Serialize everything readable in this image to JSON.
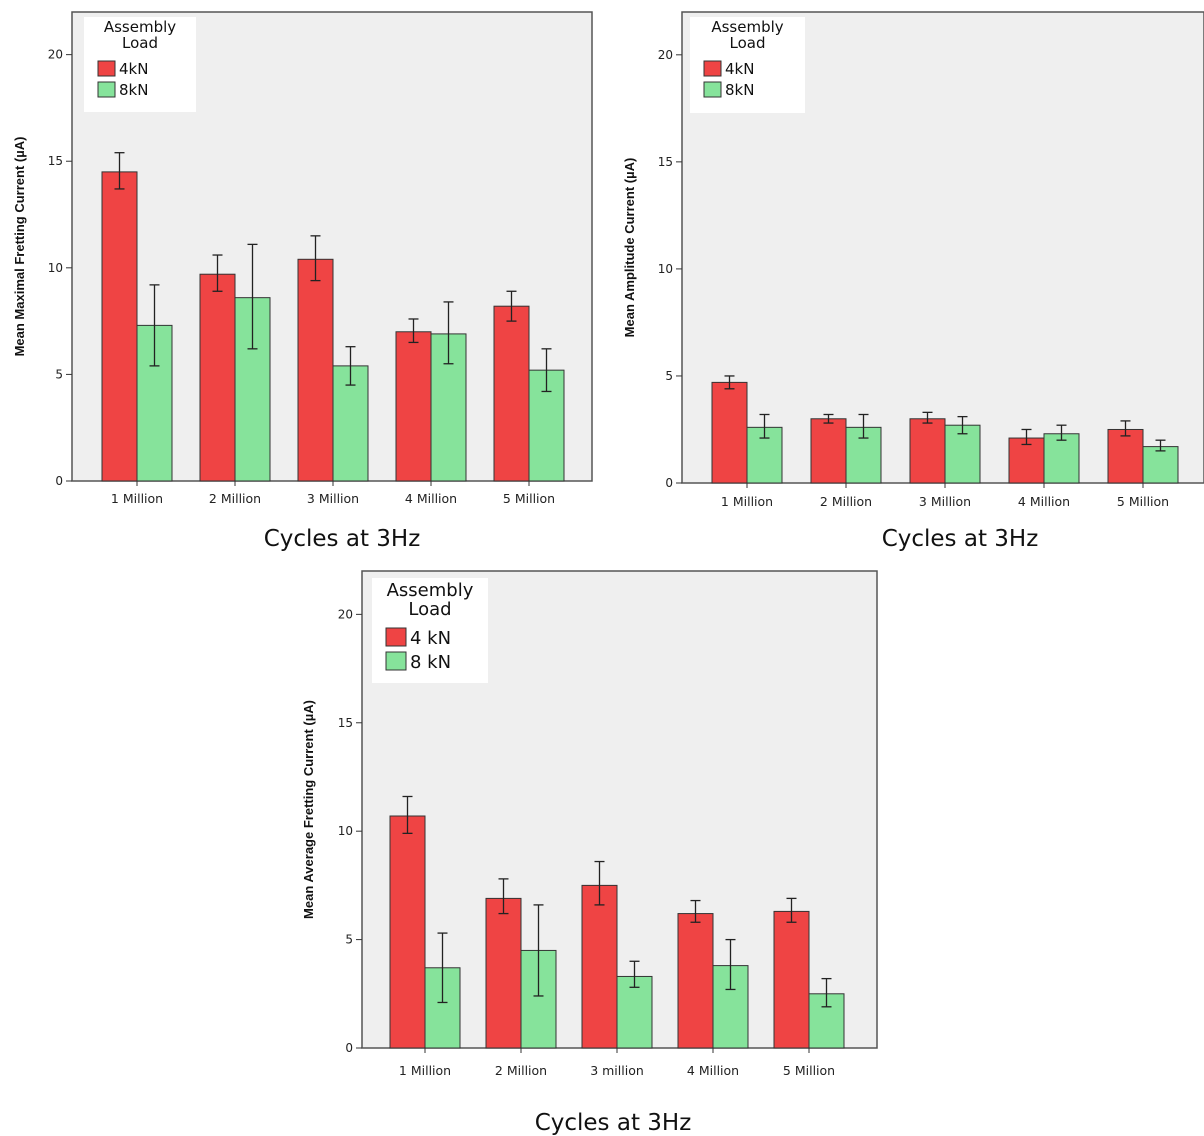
{
  "chart_data": [
    {
      "type": "bar",
      "ylabel": "Mean Maximal Fretting Current (µA)",
      "xlabel": "Cycles at 3Hz",
      "ylim": [
        0,
        22
      ],
      "yticks": [
        0,
        5,
        10,
        15,
        20
      ],
      "categories": [
        "1 Million",
        "2 Million",
        "3 Million",
        "4 Million",
        "5 Million"
      ],
      "legend_title": [
        "Assembly",
        "Load"
      ],
      "legend_position": "top-left",
      "grid": false,
      "colors": [
        "#ef4444",
        "#86e39b"
      ],
      "series": [
        {
          "name": "4kN",
          "values": [
            14.5,
            9.7,
            10.4,
            7.0,
            8.2
          ],
          "err_low": [
            13.7,
            8.9,
            9.4,
            6.5,
            7.5
          ],
          "err_high": [
            15.4,
            10.6,
            11.5,
            7.6,
            8.9
          ]
        },
        {
          "name": "8kN",
          "values": [
            7.3,
            8.6,
            5.4,
            6.9,
            5.2
          ],
          "err_low": [
            5.4,
            6.2,
            4.5,
            5.5,
            4.2
          ],
          "err_high": [
            9.2,
            11.1,
            6.3,
            8.4,
            6.2
          ]
        }
      ]
    },
    {
      "type": "bar",
      "ylabel": "Mean Amplitude Current (µA)",
      "xlabel": "Cycles at 3Hz",
      "ylim": [
        0,
        22
      ],
      "yticks": [
        0,
        5,
        10,
        15,
        20
      ],
      "categories": [
        "1 Million",
        "2 Million",
        "3 Million",
        "4 Million",
        "5 Million"
      ],
      "legend_title": [
        "Assembly",
        "Load"
      ],
      "legend_position": "top-left",
      "grid": false,
      "colors": [
        "#ef4444",
        "#86e39b"
      ],
      "series": [
        {
          "name": "4kN",
          "values": [
            4.7,
            3.0,
            3.0,
            2.1,
            2.5
          ],
          "err_low": [
            4.4,
            2.8,
            2.8,
            1.8,
            2.2
          ],
          "err_high": [
            5.0,
            3.2,
            3.3,
            2.5,
            2.9
          ]
        },
        {
          "name": "8kN",
          "values": [
            2.6,
            2.6,
            2.7,
            2.3,
            1.7
          ],
          "err_low": [
            2.1,
            2.1,
            2.3,
            2.0,
            1.5
          ],
          "err_high": [
            3.2,
            3.2,
            3.1,
            2.7,
            2.0
          ]
        }
      ]
    },
    {
      "type": "bar",
      "ylabel": "Mean Average Fretting Current (µA)",
      "xlabel": "Cycles at 3Hz",
      "ylim": [
        0,
        22
      ],
      "yticks": [
        0,
        5,
        10,
        15,
        20
      ],
      "categories": [
        "1 Million",
        "2 Million",
        "3 million",
        "4 Million",
        "5 Million"
      ],
      "legend_title": [
        "Assembly",
        "Load"
      ],
      "legend_position": "top-left",
      "grid": false,
      "colors": [
        "#ef4444",
        "#86e39b"
      ],
      "series": [
        {
          "name": "4 kN",
          "values": [
            10.7,
            6.9,
            7.5,
            6.2,
            6.3
          ],
          "err_low": [
            9.9,
            6.2,
            6.6,
            5.8,
            5.8
          ],
          "err_high": [
            11.6,
            7.8,
            8.6,
            6.8,
            6.9
          ]
        },
        {
          "name": "8 kN",
          "values": [
            3.7,
            4.5,
            3.3,
            3.8,
            2.5
          ],
          "err_low": [
            2.1,
            2.4,
            2.8,
            2.7,
            1.9
          ],
          "err_high": [
            5.3,
            6.6,
            4.0,
            5.0,
            3.2
          ]
        }
      ]
    }
  ]
}
